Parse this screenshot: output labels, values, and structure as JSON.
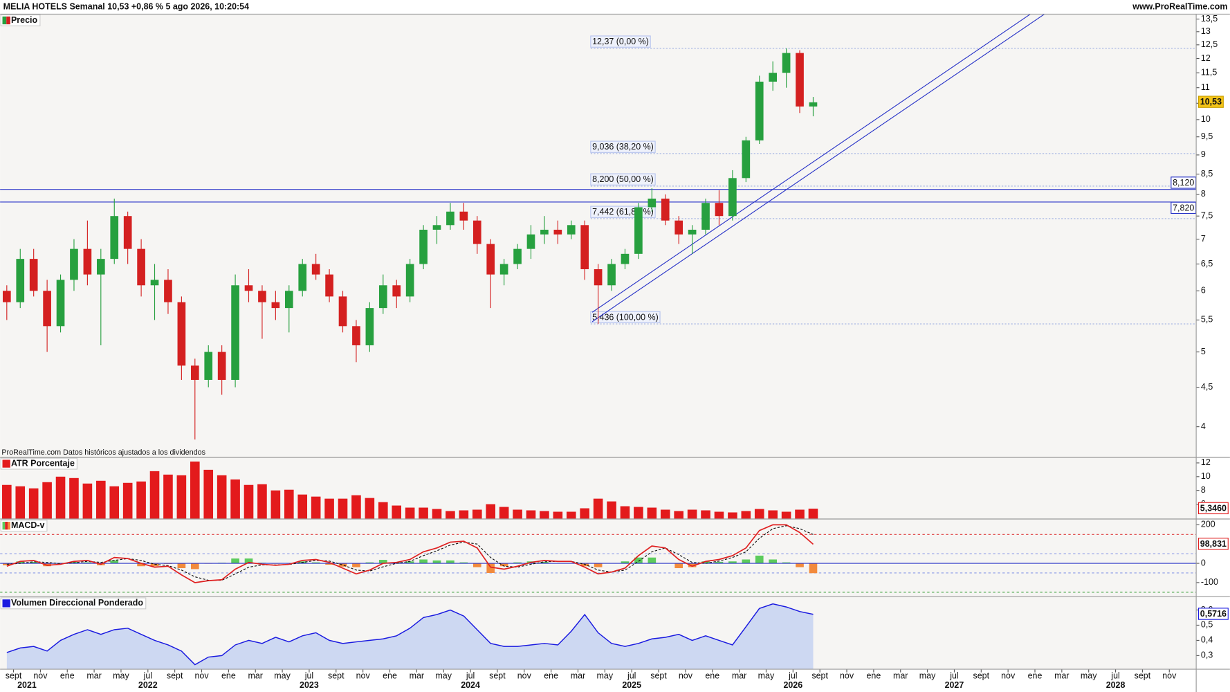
{
  "header": {
    "title": "MELIA HOTELS Semanal 10,53 +0,86 % 5 ago 2026, 10:20:54",
    "site": "www.ProRealTime.com"
  },
  "chart_data": [
    {
      "type": "candlestick",
      "title": "Precio",
      "note": "ProRealTime.com Datos históricos ajustados a los dividendos",
      "up_color": "#27a03f",
      "down_color": "#d42020",
      "log_scale": true,
      "x": [
        "2021-08",
        "2021-09",
        "2021-10",
        "2021-11",
        "2021-12",
        "2022-01",
        "2022-02",
        "2022-03",
        "2022-04",
        "2022-05",
        "2022-06",
        "2022-07",
        "2022-08",
        "2022-09",
        "2022-10",
        "2022-11",
        "2022-12",
        "2023-01",
        "2023-02",
        "2023-03",
        "2023-04",
        "2023-05",
        "2023-06",
        "2023-07",
        "2023-08",
        "2023-09",
        "2023-10",
        "2023-11",
        "2023-12",
        "2024-01",
        "2024-02",
        "2024-03",
        "2024-04",
        "2024-05",
        "2024-06",
        "2024-07",
        "2024-08",
        "2024-09",
        "2024-10",
        "2024-11",
        "2024-12",
        "2025-01",
        "2025-02",
        "2025-03",
        "2025-04",
        "2025-05",
        "2025-06",
        "2025-07",
        "2025-08",
        "2025-09",
        "2025-10",
        "2025-11",
        "2025-12",
        "2026-01",
        "2026-02",
        "2026-03",
        "2026-04",
        "2026-05",
        "2026-06",
        "2026-07",
        "2026-08"
      ],
      "open": [
        6.0,
        5.8,
        6.6,
        6.0,
        5.4,
        6.2,
        6.8,
        6.3,
        6.6,
        7.5,
        6.8,
        6.1,
        6.2,
        5.8,
        4.8,
        4.6,
        5.0,
        4.6,
        6.1,
        6.0,
        5.8,
        5.7,
        6.0,
        6.5,
        6.3,
        5.9,
        5.4,
        5.1,
        5.7,
        6.1,
        5.9,
        6.5,
        7.2,
        7.3,
        7.6,
        7.4,
        6.9,
        6.3,
        6.5,
        6.8,
        7.1,
        7.2,
        7.1,
        7.3,
        6.4,
        6.1,
        6.5,
        6.7,
        7.7,
        7.9,
        7.4,
        7.1,
        7.2,
        7.8,
        7.5,
        8.4,
        9.4,
        11.2,
        11.5,
        12.2,
        10.4
      ],
      "high": [
        6.1,
        6.8,
        6.8,
        6.2,
        6.3,
        7.0,
        7.4,
        6.8,
        7.9,
        7.6,
        7.0,
        6.5,
        6.4,
        5.9,
        4.9,
        5.1,
        5.1,
        6.3,
        6.4,
        6.1,
        6.0,
        6.1,
        6.6,
        6.7,
        6.4,
        6.0,
        5.5,
        5.8,
        6.3,
        6.2,
        6.6,
        7.3,
        7.5,
        7.8,
        7.8,
        7.5,
        7.0,
        6.6,
        6.9,
        7.3,
        7.5,
        7.4,
        7.4,
        7.4,
        6.5,
        6.6,
        6.8,
        7.8,
        8.15,
        8.0,
        7.5,
        7.3,
        7.9,
        8.1,
        8.6,
        9.5,
        11.4,
        11.9,
        12.37,
        12.3,
        10.7
      ],
      "low": [
        5.5,
        5.7,
        5.9,
        5.0,
        5.3,
        6.0,
        6.1,
        5.1,
        6.5,
        6.5,
        5.9,
        5.5,
        5.6,
        4.6,
        3.85,
        4.5,
        4.4,
        4.5,
        5.8,
        5.2,
        5.5,
        5.3,
        5.9,
        6.2,
        5.8,
        5.3,
        4.85,
        5.0,
        5.6,
        5.7,
        5.8,
        6.4,
        6.9,
        7.2,
        7.2,
        6.7,
        5.7,
        6.1,
        6.4,
        6.6,
        6.9,
        6.9,
        7.0,
        6.2,
        5.436,
        6.0,
        6.4,
        6.6,
        7.6,
        7.3,
        6.9,
        6.7,
        7.1,
        7.3,
        7.4,
        8.3,
        9.3,
        10.9,
        11.0,
        10.2,
        10.1
      ],
      "close": [
        5.8,
        6.6,
        6.0,
        5.4,
        6.2,
        6.8,
        6.3,
        6.6,
        7.5,
        6.8,
        6.1,
        6.2,
        5.8,
        4.8,
        4.6,
        5.0,
        4.6,
        6.1,
        6.0,
        5.8,
        5.7,
        6.0,
        6.5,
        6.3,
        5.9,
        5.4,
        5.1,
        5.7,
        6.1,
        5.9,
        6.5,
        7.2,
        7.3,
        7.6,
        7.4,
        6.9,
        6.3,
        6.5,
        6.8,
        7.1,
        7.2,
        7.1,
        7.3,
        6.4,
        6.1,
        6.5,
        6.7,
        7.7,
        7.9,
        7.4,
        7.1,
        7.2,
        7.8,
        7.5,
        8.4,
        9.4,
        11.2,
        11.5,
        12.2,
        10.4,
        10.53
      ],
      "xlim": [
        "2021-08",
        "2029-01"
      ],
      "xticks": [
        {
          "value": "2021-09",
          "label": "sept"
        },
        {
          "value": "2021-11",
          "label": "nov"
        },
        {
          "value": "2022-01",
          "label": "ene"
        },
        {
          "value": "2022-03",
          "label": "mar"
        },
        {
          "value": "2022-05",
          "label": "may"
        },
        {
          "value": "2022-07",
          "label": "jul"
        },
        {
          "value": "2022-09",
          "label": "sept"
        },
        {
          "value": "2022-11",
          "label": "nov"
        },
        {
          "value": "2023-01",
          "label": "ene"
        },
        {
          "value": "2023-03",
          "label": "mar"
        },
        {
          "value": "2023-05",
          "label": "may"
        },
        {
          "value": "2023-07",
          "label": "jul"
        },
        {
          "value": "2023-09",
          "label": "sept"
        },
        {
          "value": "2023-11",
          "label": "nov"
        },
        {
          "value": "2024-01",
          "label": "ene"
        },
        {
          "value": "2024-03",
          "label": "mar"
        },
        {
          "value": "2024-05",
          "label": "may"
        },
        {
          "value": "2024-07",
          "label": "jul"
        },
        {
          "value": "2024-09",
          "label": "sept"
        },
        {
          "value": "2024-11",
          "label": "nov"
        },
        {
          "value": "2025-01",
          "label": "ene"
        },
        {
          "value": "2025-03",
          "label": "mar"
        },
        {
          "value": "2025-05",
          "label": "may"
        },
        {
          "value": "2025-07",
          "label": "jul"
        },
        {
          "value": "2025-09",
          "label": "sept"
        },
        {
          "value": "2025-11",
          "label": "nov"
        },
        {
          "value": "2026-01",
          "label": "ene"
        },
        {
          "value": "2026-03",
          "label": "mar"
        },
        {
          "value": "2026-05",
          "label": "may"
        },
        {
          "value": "2026-07",
          "label": "jul"
        },
        {
          "value": "2026-09",
          "label": "sept"
        },
        {
          "value": "2026-11",
          "label": "nov"
        },
        {
          "value": "2027-01",
          "label": "ene"
        },
        {
          "value": "2027-03",
          "label": "mar"
        },
        {
          "value": "2027-05",
          "label": "may"
        },
        {
          "value": "2027-07",
          "label": "jul"
        },
        {
          "value": "2027-09",
          "label": "sept"
        },
        {
          "value": "2027-11",
          "label": "nov"
        },
        {
          "value": "2028-01",
          "label": "ene"
        },
        {
          "value": "2028-03",
          "label": "mar"
        },
        {
          "value": "2028-05",
          "label": "may"
        },
        {
          "value": "2028-07",
          "label": "jul"
        },
        {
          "value": "2028-09",
          "label": "sept"
        },
        {
          "value": "2028-11",
          "label": "nov"
        }
      ],
      "year_labels": [
        {
          "value": "2021-10",
          "label": "2021"
        },
        {
          "value": "2022-07",
          "label": "2022"
        },
        {
          "value": "2023-07",
          "label": "2023"
        },
        {
          "value": "2024-07",
          "label": "2024"
        },
        {
          "value": "2025-07",
          "label": "2025"
        },
        {
          "value": "2026-07",
          "label": "2026"
        },
        {
          "value": "2027-07",
          "label": "2027"
        },
        {
          "value": "2028-07",
          "label": "2028"
        }
      ],
      "ylim": [
        3.65,
        13.7
      ],
      "yticks": [
        4,
        {
          "value": 4.5,
          "label": "4,5"
        },
        5,
        {
          "value": 5.5,
          "label": "5,5"
        },
        6,
        {
          "value": 6.5,
          "label": "6,5"
        },
        7,
        {
          "value": 7.5,
          "label": "7,5"
        },
        8,
        {
          "value": 8.5,
          "label": "8,5"
        },
        9,
        {
          "value": 9.5,
          "label": "9,5"
        },
        10,
        {
          "value": 10.5,
          "label": "10,5"
        },
        11,
        {
          "value": 11.5,
          "label": "11,5"
        },
        12,
        {
          "value": 12.5,
          "label": "12,5"
        },
        13,
        {
          "value": 13.5,
          "label": "13,5"
        }
      ],
      "fibonacci_levels": [
        {
          "value": 12.37,
          "label": "12,37 (0,00 %)"
        },
        {
          "value": 9.036,
          "label": "9,036 (38,20 %)"
        },
        {
          "value": 8.2,
          "label": "8,200 (50,00 %)"
        },
        {
          "value": 7.442,
          "label": "7,442 (61,80 %)"
        },
        {
          "value": 5.436,
          "label": "5,436 (100,00 %)"
        }
      ],
      "horizontal_lines": [
        {
          "value": 8.12,
          "label": "8,120"
        },
        {
          "value": 7.82,
          "label": "7,820"
        }
      ],
      "last_value": {
        "value": 10.53,
        "label": "10,53"
      }
    },
    {
      "type": "bar",
      "title": "ATR Porcentaje",
      "color": "#e31a1c",
      "values": [
        8.8,
        8.6,
        8.3,
        9.2,
        10.0,
        9.8,
        9.0,
        9.4,
        8.6,
        9.1,
        9.3,
        10.8,
        10.3,
        10.2,
        12.2,
        11.0,
        10.2,
        9.6,
        8.8,
        8.9,
        8.0,
        8.1,
        7.4,
        7.1,
        6.8,
        6.8,
        7.3,
        6.9,
        6.3,
        5.8,
        5.5,
        5.5,
        5.3,
        5.0,
        5.1,
        5.2,
        6.0,
        5.6,
        5.2,
        5.1,
        5.0,
        4.9,
        4.9,
        5.4,
        6.8,
        6.4,
        5.7,
        5.6,
        5.5,
        5.2,
        5.0,
        5.2,
        5.1,
        4.9,
        4.8,
        5.0,
        5.3,
        5.1,
        4.9,
        5.2,
        5.346
      ],
      "ylim": [
        3.9,
        12.8
      ],
      "yticks": [
        6,
        8,
        10,
        12
      ],
      "last_value": {
        "value": 5.346,
        "label": "5,3460"
      }
    },
    {
      "type": "line",
      "title": "MACD-v",
      "line": {
        "color": "#e02020",
        "values": [
          -15,
          10,
          15,
          -10,
          -5,
          10,
          15,
          -5,
          30,
          25,
          0,
          -20,
          -15,
          -60,
          -100,
          -90,
          -85,
          -30,
          5,
          -5,
          -10,
          -5,
          15,
          20,
          5,
          -25,
          -55,
          -35,
          0,
          5,
          20,
          60,
          80,
          110,
          115,
          80,
          -20,
          -30,
          -15,
          5,
          15,
          10,
          10,
          -20,
          -55,
          -45,
          -25,
          40,
          90,
          80,
          20,
          -15,
          10,
          20,
          40,
          80,
          170,
          200,
          200,
          160,
          98.831
        ]
      },
      "signal_line": {
        "color": "#111111",
        "values": [
          -5,
          0,
          8,
          5,
          -2,
          3,
          10,
          5,
          15,
          25,
          15,
          -5,
          -12,
          -35,
          -70,
          -88,
          -88,
          -55,
          -20,
          -8,
          -8,
          -6,
          5,
          15,
          12,
          -8,
          -35,
          -40,
          -18,
          0,
          10,
          40,
          65,
          95,
          110,
          100,
          30,
          -15,
          -20,
          -5,
          8,
          10,
          10,
          -5,
          -35,
          -45,
          -35,
          10,
          60,
          80,
          45,
          5,
          0,
          12,
          30,
          60,
          130,
          180,
          195,
          180,
          150
        ]
      },
      "histogram": {
        "positive_color": "#5ccb5c",
        "negative_color": "#f28a3c",
        "values": [
          -10,
          10,
          7,
          -15,
          -3,
          7,
          5,
          -10,
          15,
          0,
          -15,
          -15,
          -3,
          -25,
          -30,
          -2,
          3,
          25,
          25,
          3,
          -2,
          1,
          10,
          5,
          -7,
          -17,
          -20,
          5,
          18,
          5,
          10,
          20,
          15,
          15,
          5,
          -20,
          -50,
          -15,
          5,
          10,
          7,
          0,
          0,
          -15,
          -20,
          0,
          10,
          30,
          30,
          0,
          -25,
          -20,
          10,
          8,
          10,
          20,
          40,
          20,
          5,
          -20,
          -51
        ]
      },
      "levels": [
        {
          "value": 150,
          "color": "#e04040"
        },
        {
          "value": 50,
          "color": "#8a9ae6"
        },
        {
          "value": -50,
          "color": "#8a9ae6"
        },
        {
          "value": -150,
          "color": "#3aa03a"
        }
      ],
      "ylim": [
        -171,
        228
      ],
      "yticks": [
        -100,
        0,
        200
      ],
      "last_value": {
        "value": 98.831,
        "label": "98,831"
      }
    },
    {
      "type": "area",
      "title": "Volumen Direccional Ponderado",
      "color": "#1a1ae0",
      "fill_color": "#cdd8f2",
      "values": [
        0.32,
        0.35,
        0.36,
        0.33,
        0.4,
        0.44,
        0.47,
        0.44,
        0.47,
        0.48,
        0.44,
        0.4,
        0.37,
        0.33,
        0.24,
        0.29,
        0.3,
        0.37,
        0.4,
        0.38,
        0.42,
        0.39,
        0.43,
        0.45,
        0.4,
        0.38,
        0.39,
        0.4,
        0.41,
        0.43,
        0.48,
        0.55,
        0.57,
        0.6,
        0.56,
        0.47,
        0.38,
        0.36,
        0.36,
        0.37,
        0.38,
        0.37,
        0.46,
        0.57,
        0.45,
        0.38,
        0.36,
        0.38,
        0.41,
        0.42,
        0.44,
        0.4,
        0.43,
        0.4,
        0.37,
        0.49,
        0.61,
        0.64,
        0.62,
        0.59,
        0.5716
      ],
      "ylim": [
        0.21,
        0.685
      ],
      "yticks": [
        {
          "value": 0.3,
          "label": "0,3"
        },
        {
          "value": 0.4,
          "label": "0,4"
        },
        {
          "value": 0.5,
          "label": "0,5"
        },
        {
          "value": 0.6,
          "label": "0,6"
        }
      ],
      "last_value": {
        "value": 0.5716,
        "label": "0,5716"
      }
    }
  ]
}
